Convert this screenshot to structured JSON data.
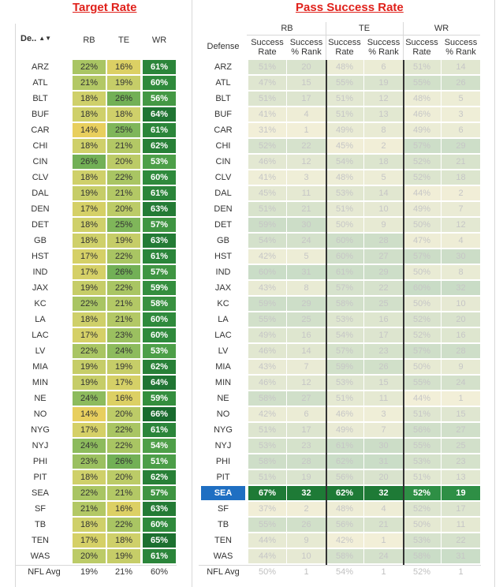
{
  "left": {
    "title": "Target Rate",
    "col_defense": "De..",
    "cols": [
      "RB",
      "TE",
      "WR"
    ],
    "avg_label": "NFL Avg",
    "avg_values": [
      "19%",
      "21%",
      "60%"
    ]
  },
  "right": {
    "title": "Pass Success Rate",
    "col_defense": "Defense",
    "groups": [
      "RB",
      "TE",
      "WR"
    ],
    "sub_a": "Success Rate",
    "sub_b": "Success % Rank",
    "avg_label": "NFL Avg",
    "avg_values": [
      "50%",
      "1",
      "54%",
      "1",
      "52%",
      "1"
    ]
  },
  "highlight_team": "SEA",
  "colors": {
    "title_red": "#e0211b",
    "highlight_blue": "#1f6fc2",
    "highlight_green": "#1e7a36"
  },
  "rows": [
    {
      "team": "ARZ",
      "rb": "22%",
      "te": "16%",
      "wr": "61%",
      "srb": "51%",
      "rrb": "20",
      "ste": "48%",
      "rte": "6",
      "swr": "51%",
      "rwr": "14"
    },
    {
      "team": "ATL",
      "rb": "21%",
      "te": "19%",
      "wr": "60%",
      "srb": "47%",
      "rrb": "15",
      "ste": "55%",
      "rte": "19",
      "swr": "55%",
      "rwr": "26"
    },
    {
      "team": "BLT",
      "rb": "18%",
      "te": "26%",
      "wr": "56%",
      "srb": "51%",
      "rrb": "17",
      "ste": "51%",
      "rte": "12",
      "swr": "48%",
      "rwr": "5"
    },
    {
      "team": "BUF",
      "rb": "18%",
      "te": "18%",
      "wr": "64%",
      "srb": "41%",
      "rrb": "4",
      "ste": "51%",
      "rte": "13",
      "swr": "46%",
      "rwr": "3"
    },
    {
      "team": "CAR",
      "rb": "14%",
      "te": "25%",
      "wr": "61%",
      "srb": "31%",
      "rrb": "1",
      "ste": "49%",
      "rte": "8",
      "swr": "49%",
      "rwr": "6"
    },
    {
      "team": "CHI",
      "rb": "18%",
      "te": "21%",
      "wr": "62%",
      "srb": "52%",
      "rrb": "22",
      "ste": "45%",
      "rte": "2",
      "swr": "57%",
      "rwr": "29"
    },
    {
      "team": "CIN",
      "rb": "26%",
      "te": "20%",
      "wr": "53%",
      "srb": "46%",
      "rrb": "12",
      "ste": "54%",
      "rte": "18",
      "swr": "52%",
      "rwr": "21"
    },
    {
      "team": "CLV",
      "rb": "18%",
      "te": "22%",
      "wr": "60%",
      "srb": "41%",
      "rrb": "3",
      "ste": "48%",
      "rte": "5",
      "swr": "52%",
      "rwr": "18"
    },
    {
      "team": "DAL",
      "rb": "19%",
      "te": "21%",
      "wr": "61%",
      "srb": "45%",
      "rrb": "11",
      "ste": "53%",
      "rte": "14",
      "swr": "44%",
      "rwr": "2"
    },
    {
      "team": "DEN",
      "rb": "17%",
      "te": "20%",
      "wr": "63%",
      "srb": "51%",
      "rrb": "21",
      "ste": "51%",
      "rte": "10",
      "swr": "49%",
      "rwr": "7"
    },
    {
      "team": "DET",
      "rb": "18%",
      "te": "25%",
      "wr": "57%",
      "srb": "59%",
      "rrb": "30",
      "ste": "50%",
      "rte": "9",
      "swr": "50%",
      "rwr": "12"
    },
    {
      "team": "GB",
      "rb": "18%",
      "te": "19%",
      "wr": "63%",
      "srb": "54%",
      "rrb": "24",
      "ste": "60%",
      "rte": "28",
      "swr": "47%",
      "rwr": "4"
    },
    {
      "team": "HST",
      "rb": "17%",
      "te": "22%",
      "wr": "61%",
      "srb": "42%",
      "rrb": "5",
      "ste": "60%",
      "rte": "27",
      "swr": "57%",
      "rwr": "30"
    },
    {
      "team": "IND",
      "rb": "17%",
      "te": "26%",
      "wr": "57%",
      "srb": "60%",
      "rrb": "31",
      "ste": "61%",
      "rte": "29",
      "swr": "50%",
      "rwr": "8"
    },
    {
      "team": "JAX",
      "rb": "19%",
      "te": "22%",
      "wr": "59%",
      "srb": "43%",
      "rrb": "8",
      "ste": "57%",
      "rte": "22",
      "swr": "60%",
      "rwr": "32"
    },
    {
      "team": "KC",
      "rb": "22%",
      "te": "21%",
      "wr": "58%",
      "srb": "59%",
      "rrb": "29",
      "ste": "58%",
      "rte": "25",
      "swr": "50%",
      "rwr": "10"
    },
    {
      "team": "LA",
      "rb": "18%",
      "te": "21%",
      "wr": "60%",
      "srb": "55%",
      "rrb": "25",
      "ste": "53%",
      "rte": "16",
      "swr": "52%",
      "rwr": "20"
    },
    {
      "team": "LAC",
      "rb": "17%",
      "te": "23%",
      "wr": "60%",
      "srb": "49%",
      "rrb": "16",
      "ste": "54%",
      "rte": "17",
      "swr": "52%",
      "rwr": "16"
    },
    {
      "team": "LV",
      "rb": "22%",
      "te": "24%",
      "wr": "53%",
      "srb": "46%",
      "rrb": "14",
      "ste": "57%",
      "rte": "23",
      "swr": "57%",
      "rwr": "28"
    },
    {
      "team": "MIA",
      "rb": "19%",
      "te": "19%",
      "wr": "62%",
      "srb": "43%",
      "rrb": "7",
      "ste": "59%",
      "rte": "26",
      "swr": "50%",
      "rwr": "9"
    },
    {
      "team": "MIN",
      "rb": "19%",
      "te": "17%",
      "wr": "64%",
      "srb": "46%",
      "rrb": "12",
      "ste": "53%",
      "rte": "15",
      "swr": "55%",
      "rwr": "24"
    },
    {
      "team": "NE",
      "rb": "24%",
      "te": "16%",
      "wr": "59%",
      "srb": "58%",
      "rrb": "27",
      "ste": "51%",
      "rte": "11",
      "swr": "44%",
      "rwr": "1"
    },
    {
      "team": "NO",
      "rb": "14%",
      "te": "20%",
      "wr": "66%",
      "srb": "42%",
      "rrb": "6",
      "ste": "46%",
      "rte": "3",
      "swr": "51%",
      "rwr": "15"
    },
    {
      "team": "NYG",
      "rb": "17%",
      "te": "22%",
      "wr": "61%",
      "srb": "51%",
      "rrb": "17",
      "ste": "49%",
      "rte": "7",
      "swr": "56%",
      "rwr": "27"
    },
    {
      "team": "NYJ",
      "rb": "24%",
      "te": "22%",
      "wr": "54%",
      "srb": "53%",
      "rrb": "23",
      "ste": "61%",
      "rte": "30",
      "swr": "55%",
      "rwr": "25"
    },
    {
      "team": "PHI",
      "rb": "23%",
      "te": "26%",
      "wr": "51%",
      "srb": "58%",
      "rrb": "28",
      "ste": "62%",
      "rte": "31",
      "swr": "53%",
      "rwr": "23"
    },
    {
      "team": "PIT",
      "rb": "18%",
      "te": "20%",
      "wr": "62%",
      "srb": "51%",
      "rrb": "19",
      "ste": "56%",
      "rte": "20",
      "swr": "51%",
      "rwr": "13"
    },
    {
      "team": "SEA",
      "rb": "22%",
      "te": "21%",
      "wr": "57%",
      "srb": "67%",
      "rrb": "32",
      "ste": "62%",
      "rte": "32",
      "swr": "52%",
      "rwr": "19"
    },
    {
      "team": "SF",
      "rb": "21%",
      "te": "16%",
      "wr": "63%",
      "srb": "37%",
      "rrb": "2",
      "ste": "48%",
      "rte": "4",
      "swr": "52%",
      "rwr": "17"
    },
    {
      "team": "TB",
      "rb": "18%",
      "te": "22%",
      "wr": "60%",
      "srb": "55%",
      "rrb": "26",
      "ste": "56%",
      "rte": "21",
      "swr": "50%",
      "rwr": "11"
    },
    {
      "team": "TEN",
      "rb": "17%",
      "te": "18%",
      "wr": "65%",
      "srb": "44%",
      "rrb": "9",
      "ste": "42%",
      "rte": "1",
      "swr": "53%",
      "rwr": "22"
    },
    {
      "team": "WAS",
      "rb": "20%",
      "te": "19%",
      "wr": "61%",
      "srb": "44%",
      "rrb": "10",
      "ste": "58%",
      "rte": "24",
      "swr": "58%",
      "rwr": "31"
    }
  ]
}
